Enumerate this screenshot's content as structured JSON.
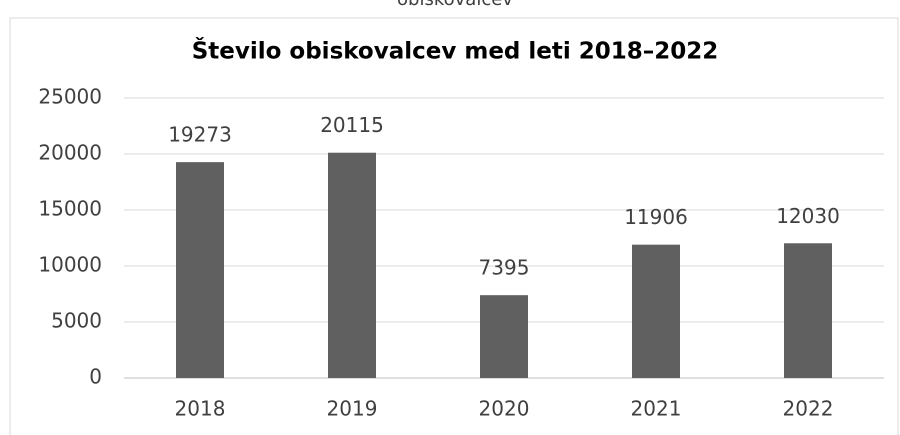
{
  "chart_data": {
    "type": "bar",
    "annotations": [
      "obiskovalcev"
    ],
    "title": "Število obiskovalcev med leti 2018–2022",
    "categories": [
      "2018",
      "2019",
      "2020",
      "2021",
      "2022"
    ],
    "values": [
      19273,
      20115,
      7395,
      11906,
      12030
    ],
    "color": "#606060",
    "ylim": [
      0,
      25000
    ],
    "yticks": [
      0,
      5000,
      10000,
      15000,
      20000,
      25000
    ],
    "grid": true
  }
}
